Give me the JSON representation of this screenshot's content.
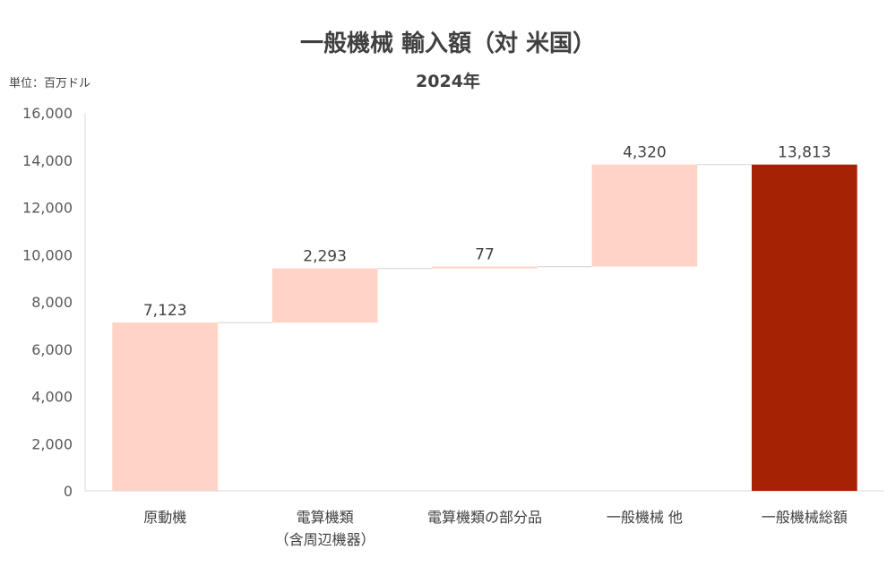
{
  "header": {
    "title": "一般機械 輸入額（対 米国）",
    "subtitle": "2024年",
    "unit": "単位：百万ドル"
  },
  "chart_data": {
    "type": "bar",
    "subtype": "waterfall",
    "title": "一般機械 輸入額（対 米国）",
    "subtitle": "2024年",
    "unit": "単位：百万ドル",
    "ylim": [
      0,
      16000
    ],
    "yticks": [
      0,
      2000,
      4000,
      6000,
      8000,
      10000,
      12000,
      14000,
      16000
    ],
    "ytick_labels": [
      "0",
      "2,000",
      "4,000",
      "6,000",
      "8,000",
      "10,000",
      "12,000",
      "14,000",
      "16,000"
    ],
    "categories": [
      [
        "原動機"
      ],
      [
        "電算機類",
        "（含周辺機器）"
      ],
      [
        "電算機類の部分品"
      ],
      [
        "一般機械 他"
      ],
      [
        "一般機械総額"
      ]
    ],
    "values": [
      7123,
      2293,
      77,
      4320,
      13813
    ],
    "value_labels": [
      "7,123",
      "2,293",
      "77",
      "4,320",
      "13,813"
    ],
    "is_total": [
      false,
      false,
      false,
      false,
      true
    ],
    "colors": {
      "increment": "#ffd3c6",
      "total": "#a52304",
      "connector": "#d9d9d9",
      "axis": "#d9d9d9"
    },
    "grid": false
  }
}
